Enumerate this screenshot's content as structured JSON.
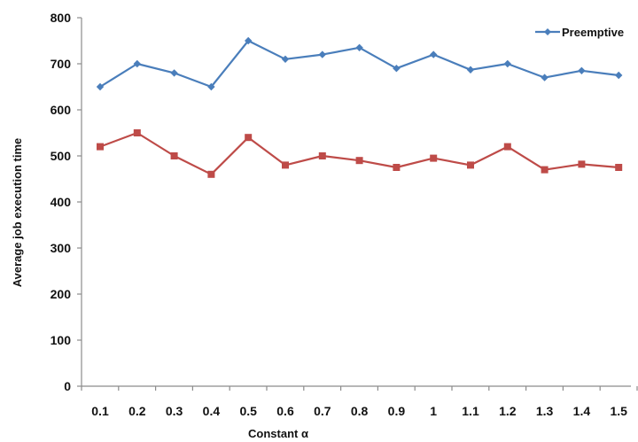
{
  "chart_data": {
    "type": "line",
    "title": "",
    "xlabel": "Constant α",
    "ylabel": "Average job execution time",
    "ylim": [
      0,
      800
    ],
    "y_ticks": [
      "0",
      "100",
      "200",
      "300",
      "400",
      "500",
      "600",
      "700",
      "800"
    ],
    "categories": [
      "0.1",
      "0.2",
      "0.3",
      "0.4",
      "0.5",
      "0.6",
      "0.7",
      "0.8",
      "0.9",
      "1",
      "1.1",
      "1.2",
      "1.3",
      "1.4",
      "1.5"
    ],
    "grid": false,
    "legend_position": "top-right",
    "series": [
      {
        "name": "Preemptive",
        "color": "#4a7ebb",
        "marker": "diamond",
        "values": [
          650,
          700,
          680,
          650,
          750,
          710,
          720,
          735,
          690,
          720,
          687,
          700,
          670,
          685,
          675
        ]
      },
      {
        "color": "#be4b48",
        "marker": "square",
        "values": [
          520,
          550,
          500,
          460,
          540,
          480,
          500,
          490,
          475,
          495,
          480,
          520,
          470,
          482,
          475
        ]
      }
    ]
  }
}
